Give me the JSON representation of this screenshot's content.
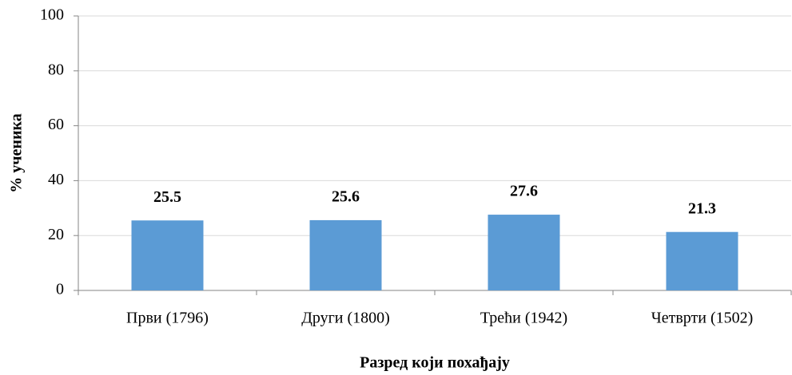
{
  "chart_data": {
    "type": "bar",
    "categories": [
      "Први (1796)",
      "Други (1800)",
      "Трећи (1942)",
      "Четврти (1502)"
    ],
    "values": [
      25.5,
      25.6,
      27.6,
      21.3
    ],
    "color": "#5b9bd5",
    "x_label": "Разред који похађају",
    "y_label": "% ученика",
    "ylim": [
      0,
      100
    ],
    "yticks": [
      0,
      20,
      40,
      60,
      80,
      100
    ],
    "grid": true
  }
}
